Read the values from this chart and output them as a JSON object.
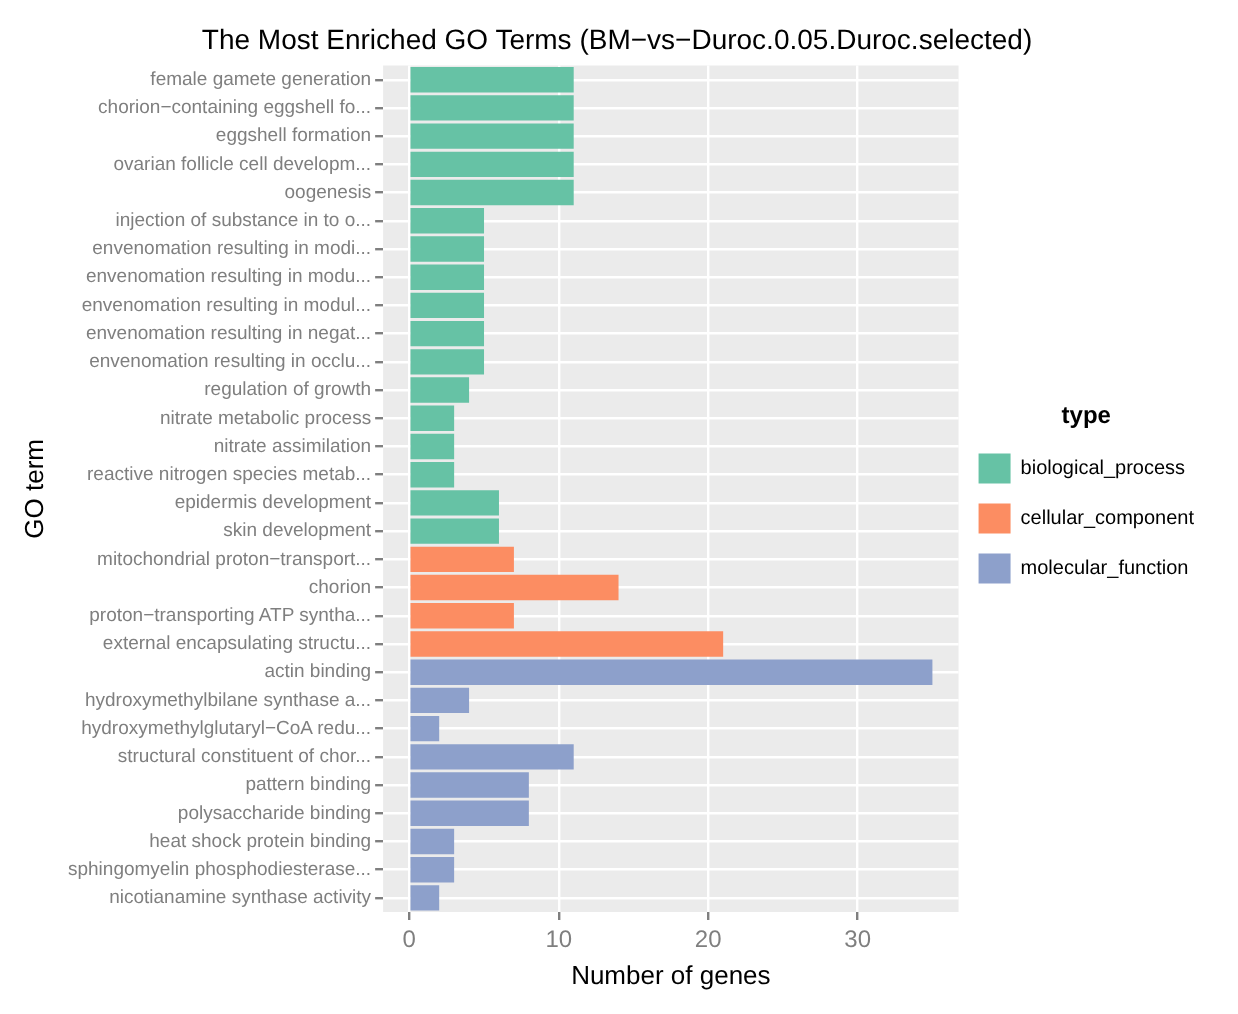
{
  "chart_data": {
    "type": "bar",
    "orientation": "horizontal",
    "title": "The Most Enriched GO Terms (BM−vs−Duroc.0.05.Duroc.selected)",
    "xlabel": "Number of genes",
    "ylabel": "GO term",
    "legend_title": "type",
    "legend": "right",
    "grid": true,
    "categories": [
      "female gamete generation",
      "chorion−containing eggshell fo...",
      "eggshell formation",
      "ovarian follicle cell developm...",
      "oogenesis",
      "injection of substance in to o...",
      "envenomation resulting in modi...",
      "envenomation resulting in modu...",
      "envenomation resulting in modul...",
      "envenomation resulting in negat...",
      "envenomation resulting in occlu...",
      "regulation of growth",
      "nitrate metabolic process",
      "nitrate assimilation",
      "reactive nitrogen species metab...",
      "epidermis development",
      "skin development",
      "mitochondrial proton−transport...",
      "chorion",
      "proton−transporting ATP syntha...",
      "external encapsulating structu...",
      "actin binding",
      "hydroxymethylbilane synthase a...",
      "hydroxymethylglutaryl−CoA redu...",
      "structural constituent of chor...",
      "pattern binding",
      "polysaccharide binding",
      "heat shock protein binding",
      "sphingomyelin phosphodiesterase...",
      "nicotianamine synthase activity"
    ],
    "xlim": [
      -1.75,
      36.75
    ],
    "xticks": [
      0,
      10,
      20,
      30
    ],
    "series": [
      {
        "name": "biological_process",
        "color": "#66c2a5",
        "values": [
          11,
          11,
          11,
          11,
          11,
          5,
          5,
          5,
          5,
          5,
          5,
          4,
          3,
          3,
          3,
          6,
          6,
          null,
          null,
          null,
          null,
          null,
          null,
          null,
          null,
          null,
          null,
          null,
          null,
          null
        ]
      },
      {
        "name": "cellular_component",
        "color": "#fc8d62",
        "values": [
          null,
          null,
          null,
          null,
          null,
          null,
          null,
          null,
          null,
          null,
          null,
          null,
          null,
          null,
          null,
          null,
          null,
          7,
          14,
          7,
          21,
          null,
          null,
          null,
          null,
          null,
          null,
          null,
          null,
          null
        ]
      },
      {
        "name": "molecular_function",
        "color": "#8da0cb",
        "values": [
          null,
          null,
          null,
          null,
          null,
          null,
          null,
          null,
          null,
          null,
          null,
          null,
          null,
          null,
          null,
          null,
          null,
          null,
          null,
          null,
          null,
          35,
          4,
          2,
          11,
          8,
          8,
          3,
          3,
          2
        ]
      }
    ]
  }
}
